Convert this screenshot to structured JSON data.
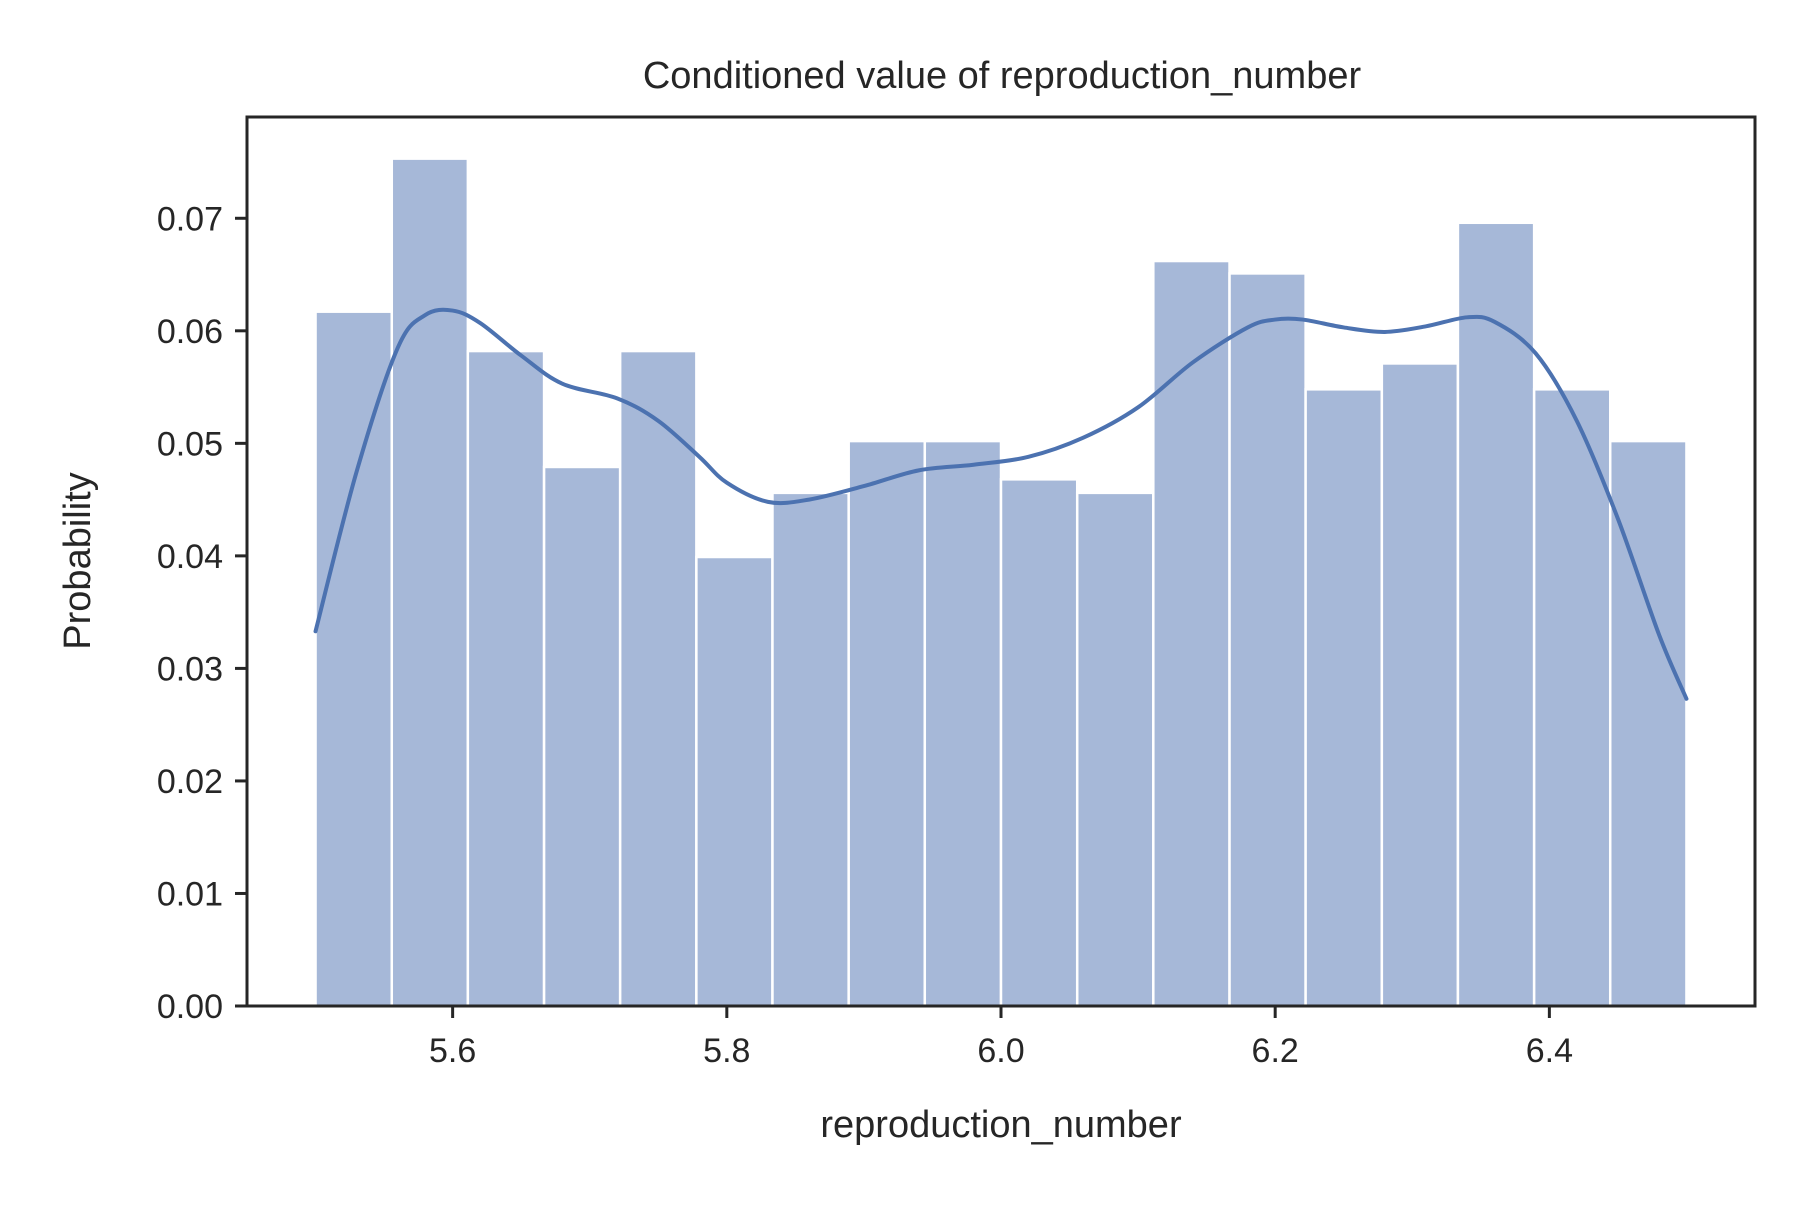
{
  "chart_data": {
    "type": "bar",
    "title": "Conditioned value of reproduction_number",
    "xlabel": "reproduction_number",
    "ylabel": "Probability",
    "xlim": [
      5.45,
      6.55
    ],
    "ylim": [
      0,
      0.079
    ],
    "xticks": [
      5.6,
      5.8,
      6.0,
      6.2,
      6.4
    ],
    "xtick_labels": [
      "5.6",
      "5.8",
      "6.0",
      "6.2",
      "6.4"
    ],
    "yticks": [
      0,
      0.01,
      0.02,
      0.03,
      0.04,
      0.05,
      0.06,
      0.07
    ],
    "ytick_labels": [
      "0.00",
      "0.01",
      "0.02",
      "0.03",
      "0.04",
      "0.05",
      "0.06",
      "0.07"
    ],
    "grid": false,
    "bins": {
      "edges": [
        5.5,
        5.5556,
        5.6111,
        5.6667,
        5.7222,
        5.7778,
        5.8333,
        5.8889,
        5.9444,
        6.0,
        6.0556,
        6.1111,
        6.1667,
        6.2222,
        6.2778,
        6.3333,
        6.3889,
        6.4444,
        6.5
      ],
      "values": [
        0.0617,
        0.0753,
        0.0582,
        0.0479,
        0.0582,
        0.0399,
        0.0456,
        0.0502,
        0.0502,
        0.0468,
        0.0456,
        0.0662,
        0.0651,
        0.0548,
        0.0571,
        0.0696,
        0.0548,
        0.0502
      ]
    },
    "kde": {
      "x": [
        5.5,
        5.53,
        5.56,
        5.58,
        5.6,
        5.62,
        5.65,
        5.68,
        5.72,
        5.75,
        5.78,
        5.8,
        5.83,
        5.86,
        5.9,
        5.94,
        5.98,
        6.02,
        6.06,
        6.1,
        6.14,
        6.18,
        6.2,
        6.22,
        6.25,
        6.28,
        6.31,
        6.34,
        6.36,
        6.39,
        6.42,
        6.45,
        6.48,
        6.5
      ],
      "y": [
        0.0333,
        0.0475,
        0.0585,
        0.0614,
        0.0618,
        0.0607,
        0.0578,
        0.0553,
        0.054,
        0.052,
        0.0488,
        0.0465,
        0.0448,
        0.045,
        0.0462,
        0.0476,
        0.0481,
        0.0488,
        0.0505,
        0.0532,
        0.0572,
        0.0603,
        0.061,
        0.061,
        0.0603,
        0.0599,
        0.0604,
        0.0612,
        0.0608,
        0.058,
        0.052,
        0.0433,
        0.033,
        0.0273
      ]
    },
    "colors": {
      "bar_fill": "#a6b8d8",
      "bar_edge": "#ffffff",
      "kde_line": "#4c72b0",
      "axes": "#262626"
    }
  }
}
